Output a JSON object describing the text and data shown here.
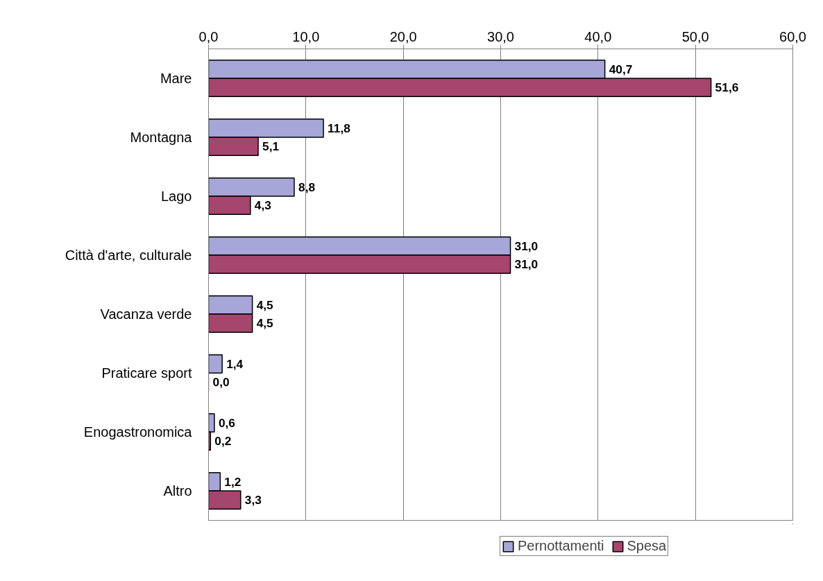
{
  "chart_data": {
    "type": "bar",
    "orientation": "horizontal",
    "categories": [
      "Mare",
      "Montagna",
      "Lago",
      "Città d'arte, culturale",
      "Vacanza verde",
      "Praticare sport",
      "Enogastronomica",
      "Altro"
    ],
    "series": [
      {
        "name": "Pernottamenti",
        "color": "#a6a6d8",
        "values": [
          40.7,
          11.8,
          8.8,
          31.0,
          4.5,
          1.4,
          0.6,
          1.2
        ],
        "value_labels": [
          "40,7",
          "11,8",
          "8,8",
          "31,0",
          "4,5",
          "1,4",
          "0,6",
          "1,2"
        ]
      },
      {
        "name": "Spesa",
        "color": "#a6466f",
        "values": [
          51.6,
          5.1,
          4.3,
          31.0,
          4.5,
          0.0,
          0.2,
          3.3
        ],
        "value_labels": [
          "51,6",
          "5,1",
          "4,3",
          "31,0",
          "4,5",
          "0,0",
          "0,2",
          "3,3"
        ]
      }
    ],
    "xlim": [
      0,
      60
    ],
    "xticks": [
      {
        "value": 0,
        "label": "0,0"
      },
      {
        "value": 10,
        "label": "10,0"
      },
      {
        "value": 20,
        "label": "20,0"
      },
      {
        "value": 30,
        "label": "30,0"
      },
      {
        "value": 40,
        "label": "40,0"
      },
      {
        "value": 50,
        "label": "50,0"
      },
      {
        "value": 60,
        "label": "60,0"
      }
    ],
    "grid": "x",
    "legend": "bottom"
  }
}
